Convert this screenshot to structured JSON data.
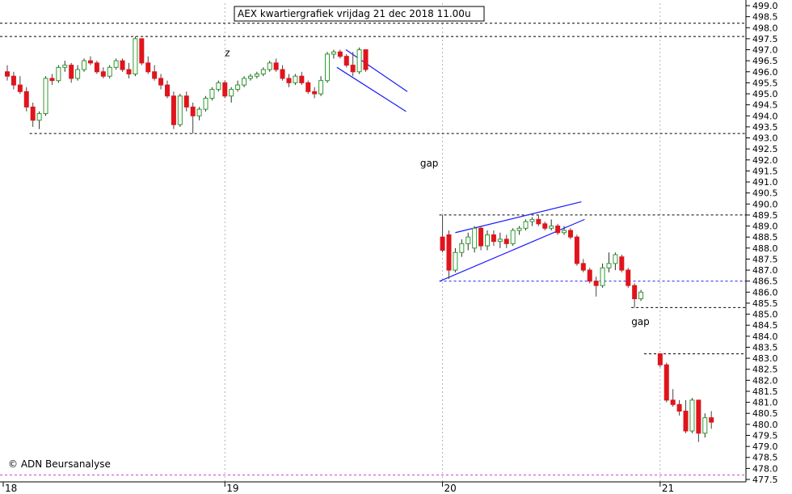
{
  "chart_data": {
    "type": "candlestick",
    "title": "AEX kwartiergrafiek vrijdag 21 dec 2018 11.00u",
    "credit": "© ADN Beursanalyse",
    "ylim": [
      477.5,
      499.0
    ],
    "y_tick_step": 0.5,
    "y_axis_side": "right",
    "x_date_labels": [
      {
        "label": "18",
        "x_index": 0
      },
      {
        "label": "19",
        "x_index": 34
      },
      {
        "label": "20",
        "x_index": 68
      },
      {
        "label": "21",
        "x_index": 102
      }
    ],
    "up_color": "#2e9a2e",
    "down_color": "#e0141c",
    "candles": [
      [
        496.0,
        496.3,
        495.6,
        495.8
      ],
      [
        495.8,
        496.0,
        495.2,
        495.4
      ],
      [
        495.4,
        495.8,
        495.0,
        495.1
      ],
      [
        495.1,
        495.3,
        494.2,
        494.4
      ],
      [
        494.4,
        494.6,
        493.5,
        493.8
      ],
      [
        493.8,
        494.2,
        493.4,
        494.1
      ],
      [
        494.1,
        495.8,
        494.0,
        495.7
      ],
      [
        495.7,
        495.9,
        495.4,
        495.6
      ],
      [
        495.6,
        496.3,
        495.5,
        496.2
      ],
      [
        496.2,
        496.5,
        496.0,
        496.3
      ],
      [
        496.3,
        496.4,
        495.5,
        495.7
      ],
      [
        495.7,
        496.3,
        495.6,
        496.1
      ],
      [
        496.1,
        496.6,
        496.0,
        496.5
      ],
      [
        496.5,
        496.7,
        496.3,
        496.4
      ],
      [
        496.4,
        496.5,
        495.9,
        496.0
      ],
      [
        496.0,
        496.2,
        495.7,
        495.8
      ],
      [
        495.8,
        496.3,
        495.7,
        496.2
      ],
      [
        496.2,
        496.6,
        496.1,
        496.5
      ],
      [
        496.5,
        496.6,
        496.0,
        496.1
      ],
      [
        496.1,
        496.4,
        495.7,
        495.9
      ],
      [
        495.9,
        497.6,
        495.8,
        497.5
      ],
      [
        497.5,
        497.5,
        496.3,
        496.4
      ],
      [
        496.4,
        496.7,
        495.9,
        496.0
      ],
      [
        496.0,
        496.3,
        495.6,
        495.7
      ],
      [
        495.7,
        495.9,
        495.2,
        495.4
      ],
      [
        495.4,
        495.6,
        494.8,
        494.9
      ],
      [
        494.9,
        495.1,
        493.4,
        493.6
      ],
      [
        493.6,
        495.0,
        493.5,
        494.9
      ],
      [
        494.9,
        495.1,
        494.2,
        494.4
      ],
      [
        494.4,
        494.6,
        493.2,
        494.0
      ],
      [
        494.0,
        494.4,
        493.8,
        494.3
      ],
      [
        494.3,
        494.9,
        494.2,
        494.8
      ],
      [
        494.8,
        495.3,
        494.7,
        495.2
      ],
      [
        495.2,
        495.6,
        495.1,
        495.5
      ],
      [
        495.5,
        495.6,
        494.8,
        494.9
      ],
      [
        494.9,
        495.3,
        494.6,
        495.2
      ],
      [
        495.2,
        495.6,
        495.1,
        495.4
      ],
      [
        495.4,
        495.8,
        495.3,
        495.7
      ],
      [
        495.7,
        495.9,
        495.6,
        495.8
      ],
      [
        495.8,
        496.0,
        495.7,
        495.9
      ],
      [
        495.9,
        496.2,
        495.8,
        496.1
      ],
      [
        496.1,
        496.5,
        496.0,
        496.4
      ],
      [
        496.4,
        496.6,
        496.0,
        496.1
      ],
      [
        496.1,
        496.3,
        495.6,
        495.7
      ],
      [
        495.7,
        495.9,
        495.3,
        495.5
      ],
      [
        495.5,
        495.9,
        495.4,
        495.8
      ],
      [
        495.8,
        496.0,
        495.4,
        495.5
      ],
      [
        495.5,
        495.6,
        495.0,
        495.1
      ],
      [
        495.1,
        495.3,
        494.8,
        495.0
      ],
      [
        495.0,
        495.8,
        494.9,
        495.6
      ],
      [
        495.6,
        496.9,
        495.5,
        496.8
      ],
      [
        496.8,
        497.0,
        496.6,
        496.9
      ],
      [
        496.9,
        497.0,
        496.6,
        496.7
      ],
      [
        496.7,
        496.8,
        496.2,
        496.3
      ],
      [
        496.3,
        496.9,
        495.8,
        496.0
      ],
      [
        496.0,
        497.1,
        495.9,
        497.0
      ],
      [
        497.0,
        497.0,
        496.0,
        496.1
      ],
      [
        488.5,
        489.5,
        487.8,
        487.9
      ],
      [
        488.6,
        488.8,
        486.6,
        487.0
      ],
      [
        487.0,
        488.0,
        486.9,
        487.8
      ],
      [
        487.8,
        488.4,
        487.6,
        488.2
      ],
      [
        488.2,
        488.7,
        487.9,
        488.5
      ],
      [
        488.0,
        489.0,
        487.8,
        488.9
      ],
      [
        488.9,
        489.0,
        487.9,
        488.1
      ],
      [
        488.1,
        488.8,
        487.9,
        488.6
      ],
      [
        488.6,
        488.8,
        488.1,
        488.3
      ],
      [
        488.3,
        488.7,
        488.0,
        488.4
      ],
      [
        488.4,
        488.6,
        488.0,
        488.2
      ],
      [
        488.2,
        488.9,
        488.1,
        488.8
      ],
      [
        488.8,
        489.0,
        488.6,
        488.9
      ],
      [
        488.9,
        489.3,
        488.8,
        489.2
      ],
      [
        489.2,
        489.4,
        489.0,
        489.3
      ],
      [
        489.3,
        489.5,
        489.0,
        489.1
      ],
      [
        489.1,
        489.2,
        488.8,
        488.9
      ],
      [
        488.9,
        489.3,
        488.8,
        489.0
      ],
      [
        489.0,
        489.1,
        488.6,
        488.7
      ],
      [
        488.7,
        489.0,
        488.6,
        488.8
      ],
      [
        488.8,
        488.9,
        488.4,
        488.5
      ],
      [
        488.5,
        488.6,
        487.2,
        487.3
      ],
      [
        487.3,
        487.5,
        486.9,
        487.0
      ],
      [
        487.0,
        487.1,
        486.4,
        486.5
      ],
      [
        486.5,
        486.7,
        485.8,
        486.3
      ],
      [
        486.3,
        487.3,
        486.2,
        487.1
      ],
      [
        487.1,
        487.8,
        486.9,
        487.3
      ],
      [
        487.3,
        487.8,
        487.0,
        487.7
      ],
      [
        487.6,
        487.7,
        486.9,
        487.0
      ],
      [
        487.0,
        487.1,
        486.2,
        486.3
      ],
      [
        486.3,
        486.4,
        485.3,
        485.7
      ],
      [
        485.7,
        486.1,
        485.6,
        486.0
      ],
      [
        483.2,
        483.2,
        482.6,
        482.7
      ],
      [
        482.7,
        482.8,
        481.0,
        481.1
      ],
      [
        481.1,
        481.6,
        480.8,
        480.9
      ],
      [
        480.9,
        481.1,
        480.4,
        480.6
      ],
      [
        480.6,
        481.1,
        479.6,
        479.7
      ],
      [
        479.7,
        481.2,
        479.6,
        481.1
      ],
      [
        481.1,
        481.1,
        479.2,
        479.6
      ],
      [
        479.6,
        480.5,
        479.4,
        480.3
      ],
      [
        480.3,
        480.6,
        479.8,
        480.1
      ]
    ],
    "candle_x_indices": [
      0,
      1,
      2,
      3,
      4,
      5,
      6,
      7,
      8,
      9,
      10,
      11,
      12,
      13,
      14,
      15,
      16,
      17,
      18,
      19,
      20,
      21,
      22,
      23,
      24,
      25,
      26,
      27,
      28,
      29,
      30,
      31,
      32,
      33,
      34,
      35,
      36,
      37,
      38,
      39,
      40,
      41,
      42,
      43,
      44,
      45,
      46,
      47,
      48,
      49,
      50,
      51,
      52,
      53,
      54,
      55,
      56,
      68,
      69,
      70,
      71,
      72,
      73,
      74,
      75,
      76,
      77,
      78,
      79,
      80,
      81,
      82,
      83,
      84,
      85,
      86,
      87,
      88,
      89,
      90,
      91,
      92,
      93,
      94,
      95,
      96,
      97,
      98,
      99,
      102,
      103,
      104,
      105,
      106,
      107,
      108,
      109,
      110
    ],
    "x_index_range": [
      0,
      120
    ],
    "horizontal_levels": [
      {
        "y": 498.2,
        "color": "#000000"
      },
      {
        "y": 497.6,
        "color": "#000000"
      },
      {
        "y": 493.2,
        "color": "#000000",
        "x_from": 4
      },
      {
        "y": 489.5,
        "color": "#000000",
        "x_from": 68
      },
      {
        "y": 486.5,
        "color": "#1a1aff",
        "x_from": 68
      },
      {
        "y": 485.3,
        "color": "#000000",
        "x_from": 98
      },
      {
        "y": 483.2,
        "color": "#000000",
        "x_from": 100
      },
      {
        "y": 477.7,
        "color": "#cc44cc"
      }
    ],
    "trendlines": [
      {
        "from": [
          52.9,
          497.0
        ],
        "to": [
          62.5,
          495.1
        ],
        "color": "#1a1aff"
      },
      {
        "from": [
          51.5,
          496.2
        ],
        "to": [
          62.3,
          494.2
        ],
        "color": "#1a1aff"
      },
      {
        "from": [
          70.0,
          488.7
        ],
        "to": [
          89.7,
          490.1
        ],
        "color": "#1a1aff"
      },
      {
        "from": [
          67.6,
          486.5
        ],
        "to": [
          90.2,
          489.3
        ],
        "color": "#1a1aff"
      }
    ],
    "annotations": [
      {
        "text": "gap",
        "x_index": 64.5,
        "y": 491.7
      },
      {
        "text": "gap",
        "x_index": 97.5,
        "y": 484.5
      },
      {
        "text": "z",
        "x_index": 34.0,
        "y": 496.7
      }
    ]
  }
}
